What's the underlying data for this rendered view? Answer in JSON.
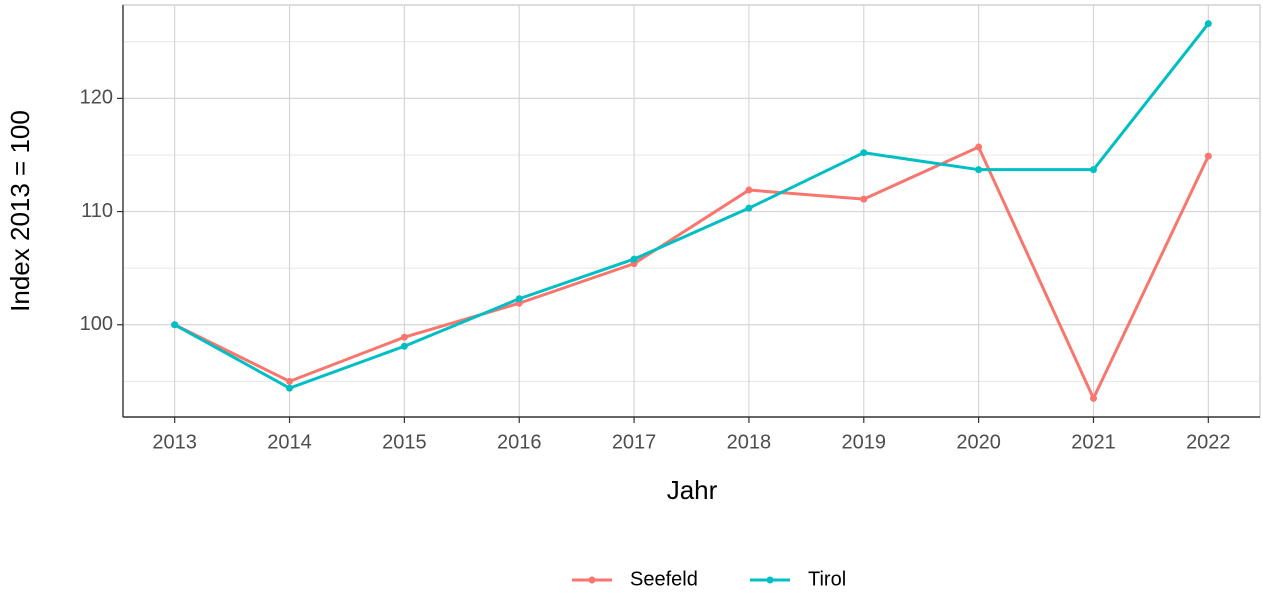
{
  "chart_data": {
    "type": "line",
    "xlabel": "Jahr",
    "ylabel": "Index  2013  = 100",
    "x": [
      2013,
      2014,
      2015,
      2016,
      2017,
      2018,
      2019,
      2020,
      2021,
      2022
    ],
    "series": [
      {
        "name": "Seefeld",
        "color": "#F8766D",
        "values": [
          100,
          95.0,
          98.9,
          101.9,
          105.4,
          111.9,
          111.1,
          115.7,
          93.5,
          114.9
        ]
      },
      {
        "name": "Tirol",
        "color": "#00BFC4",
        "values": [
          100,
          94.4,
          98.1,
          102.3,
          105.8,
          110.3,
          115.2,
          113.7,
          113.7,
          126.6
        ]
      }
    ],
    "xlim": [
      2012.55,
      2022.45
    ],
    "xticks": [
      2013,
      2014,
      2015,
      2016,
      2017,
      2018,
      2019,
      2020,
      2021,
      2022
    ],
    "ylim": [
      91.85,
      128.25
    ],
    "yticks": [
      100,
      110,
      120
    ],
    "yminor": [
      95,
      105,
      115,
      125
    ],
    "grid": true,
    "legend": "bottom"
  }
}
